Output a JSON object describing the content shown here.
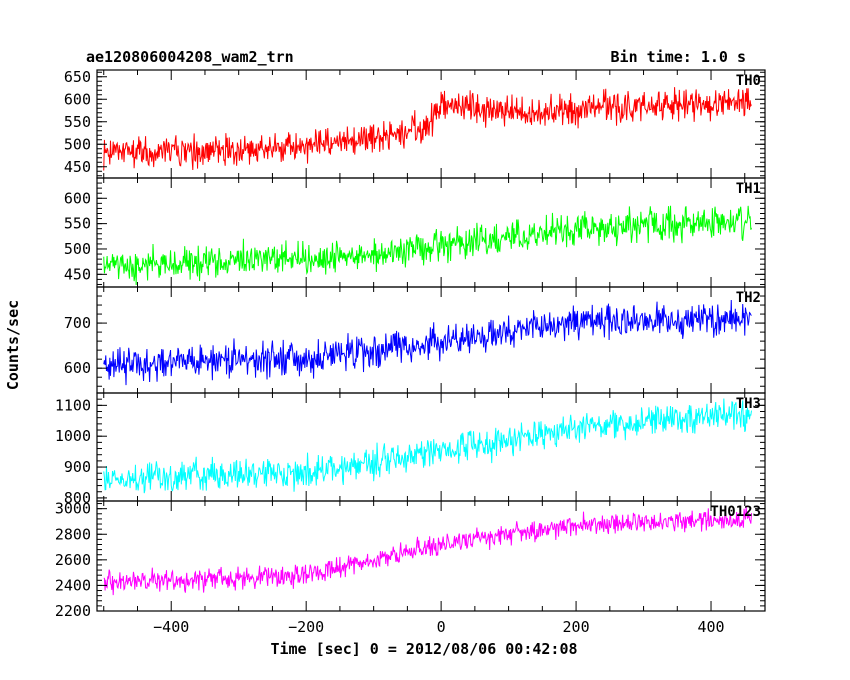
{
  "header": {
    "left_title": "ae120806004208_wam2_trn",
    "right_title": "Bin time: 1.0 s"
  },
  "chart_data": {
    "type": "line",
    "title": "ae120806004208_wam2_trn",
    "subtitle": "Bin time: 1.0 s",
    "xlabel": "Time [sec] 0 = 2012/08/06 00:42:08",
    "ylabel": "Counts/sec",
    "xlim": [
      -510,
      480
    ],
    "xticks": [
      -400,
      -200,
      0,
      200,
      400
    ],
    "x_tick_labels": [
      "−400",
      "−200",
      "0",
      "200",
      "400"
    ],
    "data_x_range": [
      -500,
      460
    ],
    "bin_time_s": 1.0,
    "grid": false,
    "legend": "none",
    "panels": [
      {
        "name": "TH0",
        "color": "#ff0000",
        "ylim": [
          425,
          665
        ],
        "yticks": [
          450,
          500,
          550,
          600,
          650
        ],
        "trend_points": [
          [
            -500,
            480
          ],
          [
            -300,
            485
          ],
          [
            -100,
            510
          ],
          [
            -20,
            540
          ],
          [
            0,
            590
          ],
          [
            100,
            572
          ],
          [
            460,
            595
          ]
        ],
        "noise_halfwidth": 38
      },
      {
        "name": "TH1",
        "color": "#00ff00",
        "ylim": [
          425,
          640
        ],
        "yticks": [
          450,
          500,
          550,
          600
        ],
        "trend_points": [
          [
            -500,
            465
          ],
          [
            -200,
            480
          ],
          [
            0,
            505
          ],
          [
            200,
            540
          ],
          [
            460,
            555
          ]
        ],
        "noise_halfwidth": 34
      },
      {
        "name": "TH2",
        "color": "#0000ff",
        "ylim": [
          545,
          780
        ],
        "yticks": [
          600,
          700
        ],
        "trend_points": [
          [
            -500,
            610
          ],
          [
            -200,
            620
          ],
          [
            0,
            660
          ],
          [
            200,
            700
          ],
          [
            460,
            710
          ]
        ],
        "noise_halfwidth": 40
      },
      {
        "name": "TH3",
        "color": "#00ffff",
        "ylim": [
          790,
          1140
        ],
        "yticks": [
          800,
          900,
          1000,
          1100
        ],
        "trend_points": [
          [
            -500,
            860
          ],
          [
            -200,
            880
          ],
          [
            0,
            950
          ],
          [
            200,
            1030
          ],
          [
            460,
            1070
          ]
        ],
        "noise_halfwidth": 55
      },
      {
        "name": "TH0123",
        "color": "#ff00ff",
        "ylim": [
          2200,
          3060
        ],
        "yticks": [
          2200,
          2400,
          2600,
          2800,
          3000
        ],
        "trend_points": [
          [
            -500,
            2420
          ],
          [
            -200,
            2480
          ],
          [
            0,
            2720
          ],
          [
            200,
            2880
          ],
          [
            460,
            2920
          ]
        ],
        "noise_halfwidth": 90
      }
    ]
  }
}
